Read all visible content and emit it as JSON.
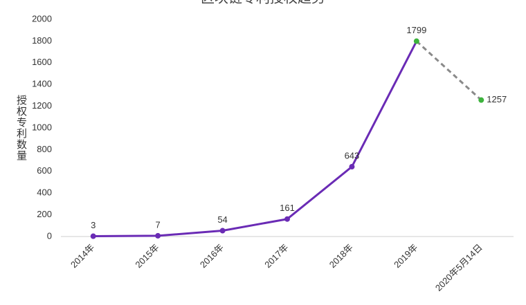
{
  "chart_data": {
    "type": "line",
    "title": "区块链专利授权趋势",
    "y_label": "授权专利数量",
    "categories": [
      "2014年",
      "2015年",
      "2016年",
      "2017年",
      "2018年",
      "2019年",
      "2020年5月14日"
    ],
    "values": [
      3,
      7,
      54,
      161,
      643,
      1799,
      1257
    ],
    "color": "#6a2bb5",
    "dash_color": "#8a8a8a",
    "highlight_color": "#3db33d",
    "ylim": [
      0,
      2000
    ],
    "yticks": [
      0,
      200,
      400,
      600,
      800,
      1000,
      1200,
      1400,
      1600,
      1800,
      2000
    ],
    "grid": false
  }
}
